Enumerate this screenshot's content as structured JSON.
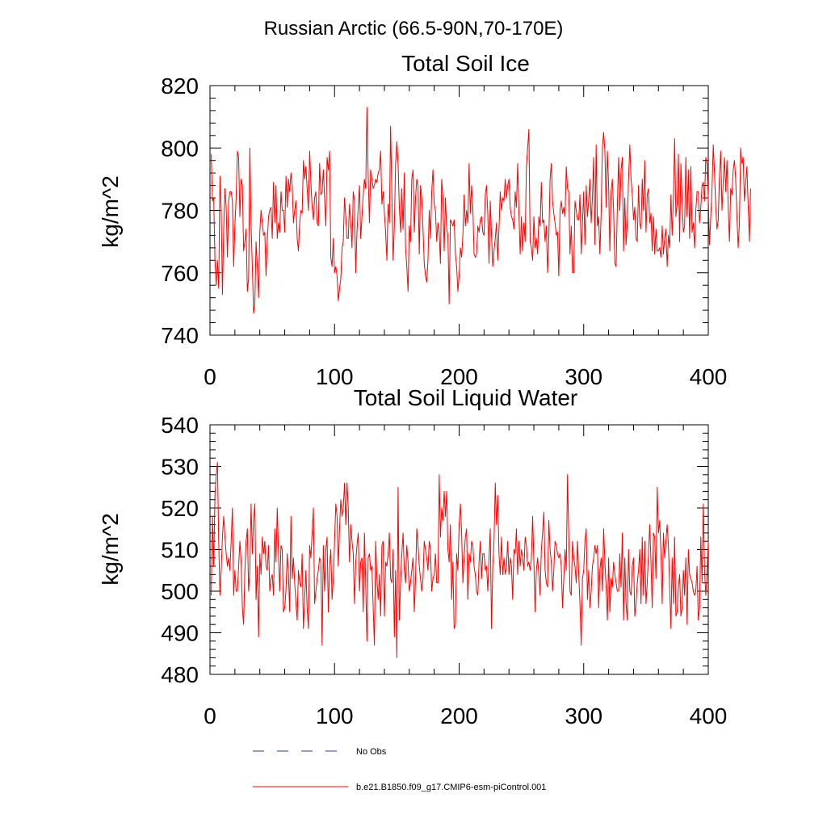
{
  "figure_title": "Russian Arctic (66.5-90N,70-170E)",
  "colors": {
    "model": "#ff0000",
    "obs": "#2f3d7a",
    "axis": "#000000"
  },
  "legend": {
    "obs_label": "No Obs",
    "model_label": "b.e21.B1850.f09_g17.CMIP6-esm-piControl.001"
  },
  "chart_data": [
    {
      "type": "line",
      "title": "Total Soil Ice",
      "xlabel": "",
      "ylabel": "kg/m^2",
      "xlim": [
        0,
        400
      ],
      "ylim": [
        740,
        820
      ],
      "xticks": [
        0,
        100,
        200,
        300,
        400
      ],
      "yticks": [
        740,
        760,
        780,
        800,
        820
      ],
      "grid": false,
      "series": [
        {
          "name": "b.e21.B1850.f09_g17.CMIP6-esm-piControl.001",
          "x_start": 1,
          "x_step": 1,
          "values": [
            798,
            783,
            784,
            764,
            756,
            764,
            755,
            791,
            780,
            753,
            774,
            787,
            781,
            765,
            783,
            786,
            786,
            783,
            762,
            775,
            784,
            799,
            797,
            778,
            790,
            788,
            767,
            770,
            774,
            754,
            758,
            800,
            775,
            762,
            747,
            750,
            770,
            762,
            752,
            773,
            780,
            776,
            772,
            773,
            759,
            770,
            778,
            780,
            781,
            771,
            789,
            776,
            788,
            771,
            776,
            773,
            786,
            780,
            780,
            773,
            791,
            781,
            790,
            786,
            792,
            788,
            776,
            780,
            783,
            771,
            767,
            776,
            780,
            779,
            796,
            790,
            794,
            787,
            780,
            799,
            789,
            781,
            777,
            784,
            786,
            776,
            775,
            795,
            785,
            786,
            793,
            784,
            775,
            797,
            793,
            799,
            765,
            762,
            771,
            760,
            762,
            759,
            751,
            755,
            758,
            768,
            770,
            784,
            778,
            771,
            771,
            782,
            776,
            768,
            786,
            783,
            760,
            773,
            781,
            788,
            771,
            778,
            785,
            790,
            787,
            813,
            791,
            776,
            793,
            790,
            787,
            788,
            790,
            789,
            792,
            793,
            799,
            782,
            786,
            779,
            773,
            764,
            782,
            776,
            807,
            785,
            764,
            775,
            795,
            802,
            795,
            781,
            773,
            787,
            774,
            792,
            768,
            762,
            754,
            775,
            770,
            790,
            793,
            773,
            784,
            790,
            788,
            766,
            788,
            784,
            774,
            763,
            759,
            757,
            764,
            780,
            771,
            786,
            793,
            782,
            780,
            770,
            776,
            773,
            763,
            790,
            784,
            767,
            784,
            774,
            772,
            750,
            777,
            776,
            775,
            777,
            766,
            762,
            754,
            759,
            768,
            765,
            772,
            785,
            775,
            780,
            776,
            795,
            779,
            788,
            781,
            766,
            765,
            766,
            775,
            773,
            777,
            778,
            773,
            772,
            785,
            788,
            779,
            763,
            783,
            772,
            762,
            767,
            771,
            776,
            764,
            774,
            786,
            780,
            784,
            783,
            790,
            784,
            788,
            790,
            781,
            778,
            777,
            774,
            786,
            781,
            795,
            779,
            766,
            778,
            767,
            776,
            770,
            794,
            800,
            806,
            770,
            768,
            764,
            778,
            768,
            771,
            766,
            778,
            775,
            789,
            776,
            777,
            770,
            775,
            760,
            771,
            790,
            795,
            783,
            779,
            776,
            772,
            773,
            759,
            780,
            783,
            779,
            781,
            778,
            794,
            787,
            786,
            766,
            775,
            760,
            760,
            783,
            780,
            777,
            777,
            785,
            766,
            776,
            786,
            769,
            788,
            778,
            783,
            790,
            776,
            784,
            797,
            769,
            801,
            775,
            778,
            766,
            779,
            800,
            805,
            799,
            781,
            799,
            788,
            767,
            786,
            790,
            780,
            763,
            762,
            781,
            797,
            780,
            793,
            797,
            767,
            784,
            769,
            776,
            790,
            801,
            790,
            785,
            777,
            781,
            771,
            770,
            788,
            776,
            774,
            790,
            780,
            796,
            773,
            785,
            787,
            776,
            779,
            767,
            778,
            766,
            774,
            767,
            767,
            768,
            765,
            775,
            766,
            771,
            774,
            762,
            772,
            768,
            785,
            772,
            784,
            803,
            778,
            782,
            798,
            770,
            795,
            783,
            773,
            775,
            797,
            778,
            793,
            771,
            794,
            773,
            776,
            768,
            780,
            786,
            786,
            776,
            781,
            788,
            789,
            783,
            797,
            795,
            784,
            769,
            778,
            787,
            801,
            792,
            781,
            774,
            777,
            791,
            799,
            780,
            789,
            797,
            786,
            796,
            781,
            770,
            787,
            785,
            793,
            796,
            790,
            778,
            768,
            776,
            800,
            795,
            797,
            783,
            789,
            794,
            782,
            770,
            787
          ]
        }
      ]
    },
    {
      "type": "line",
      "title": "Total Soil Liquid Water",
      "xlabel": "",
      "ylabel": "kg/m^2",
      "xlim": [
        0,
        400
      ],
      "ylim": [
        480,
        540
      ],
      "xticks": [
        0,
        100,
        200,
        300,
        400
      ],
      "yticks": [
        480,
        490,
        500,
        510,
        520,
        530,
        540
      ],
      "grid": false,
      "series": [
        {
          "name": "b.e21.B1850.f09_g17.CMIP6-esm-piControl.001",
          "x_start": 1,
          "x_step": 1,
          "values": [
            499,
            518,
            506,
            523,
            528,
            531,
            512,
            499,
            505,
            513,
            518,
            513,
            509,
            506,
            508,
            505,
            512,
            520,
            499,
            505,
            500,
            500,
            506,
            512,
            507,
            496,
            492,
            505,
            512,
            515,
            500,
            505,
            521,
            509,
            517,
            521,
            498,
            506,
            489,
            509,
            504,
            513,
            509,
            512,
            506,
            505,
            511,
            500,
            503,
            504,
            499,
            515,
            507,
            520,
            509,
            500,
            511,
            510,
            495,
            496,
            500,
            509,
            504,
            495,
            518,
            503,
            508,
            502,
            497,
            493,
            505,
            502,
            501,
            509,
            491,
            498,
            505,
            496,
            491,
            511,
            508,
            514,
            520,
            497,
            500,
            503,
            505,
            508,
            507,
            487,
            511,
            500,
            510,
            513,
            495,
            506,
            510,
            498,
            503,
            512,
            521,
            518,
            506,
            515,
            522,
            518,
            520,
            526,
            516,
            526,
            520,
            507,
            516,
            512,
            509,
            497,
            507,
            511,
            514,
            500,
            507,
            508,
            495,
            514,
            502,
            488,
            508,
            509,
            505,
            506,
            496,
            487,
            512,
            503,
            498,
            504,
            494,
            511,
            512,
            494,
            507,
            506,
            509,
            514,
            503,
            502,
            510,
            489,
            505,
            484,
            525,
            493,
            502,
            509,
            514,
            505,
            502,
            511,
            507,
            500,
            502,
            505,
            508,
            495,
            503,
            515,
            511,
            506,
            503,
            500,
            503,
            512,
            510,
            508,
            505,
            512,
            510,
            500,
            503,
            504,
            509,
            502,
            502,
            528,
            513,
            520,
            517,
            524,
            518,
            524,
            510,
            507,
            516,
            498,
            507,
            491,
            492,
            509,
            505,
            516,
            521,
            514,
            502,
            508,
            513,
            515,
            498,
            509,
            507,
            512,
            511,
            506,
            504,
            500,
            499,
            507,
            512,
            503,
            509,
            509,
            505,
            506,
            500,
            508,
            515,
            491,
            506,
            512,
            526,
            516,
            523,
            509,
            504,
            513,
            504,
            508,
            504,
            506,
            512,
            504,
            508,
            506,
            498,
            510,
            509,
            515,
            504,
            512,
            506,
            510,
            508,
            505,
            513,
            511,
            506,
            507,
            505,
            508,
            518,
            507,
            495,
            505,
            508,
            504,
            499,
            510,
            514,
            519,
            505,
            502,
            501,
            517,
            510,
            507,
            500,
            505,
            512,
            511,
            509,
            508,
            509,
            506,
            496,
            503,
            510,
            505,
            528,
            513,
            500,
            499,
            512,
            508,
            506,
            502,
            512,
            504,
            497,
            487,
            503,
            505,
            512,
            515,
            498,
            505,
            496,
            500,
            506,
            508,
            511,
            509,
            511,
            496,
            505,
            508,
            500,
            515,
            507,
            501,
            493,
            508,
            495,
            503,
            501,
            507,
            504,
            502,
            500,
            500,
            509,
            501,
            514,
            493,
            508,
            497,
            493,
            510,
            500,
            499,
            506,
            508,
            494,
            497,
            502,
            505,
            510,
            497,
            513,
            499,
            512,
            497,
            502,
            509,
            516,
            507,
            496,
            514,
            513,
            503,
            525,
            514,
            517,
            509,
            497,
            514,
            508,
            512,
            516,
            511,
            501,
            491,
            508,
            497,
            513,
            494,
            495,
            501,
            504,
            494,
            496,
            505,
            499,
            508,
            492,
            510,
            504,
            503,
            502,
            500,
            499,
            500,
            506,
            493,
            496,
            513,
            502,
            521,
            505,
            499,
            504,
            512
          ]
        }
      ]
    }
  ]
}
